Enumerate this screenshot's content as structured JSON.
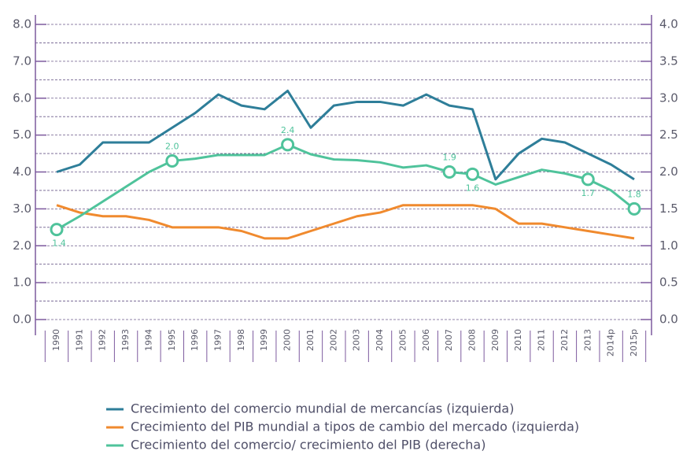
{
  "chart_data": {
    "type": "line",
    "categories": [
      "1990",
      "1991",
      "1992",
      "1993",
      "1994",
      "1995",
      "1996",
      "1997",
      "1998",
      "1999",
      "2000",
      "2001",
      "2002",
      "2003",
      "2004",
      "2005",
      "2006",
      "2007",
      "2008",
      "2009",
      "2010",
      "2011",
      "2012",
      "2013",
      "2014p",
      "2015p"
    ],
    "series": [
      {
        "name": "Crecimiento del comercio mundial de mercancías (izquierda)",
        "color": "#2e7e99",
        "axis": "y",
        "values": [
          4.0,
          4.2,
          4.8,
          4.8,
          4.8,
          5.2,
          5.6,
          6.1,
          5.8,
          5.7,
          6.2,
          5.2,
          5.8,
          5.9,
          5.9,
          5.8,
          6.1,
          5.8,
          5.7,
          3.8,
          4.5,
          4.9,
          4.8,
          4.5,
          4.2,
          3.8
        ]
      },
      {
        "name": "Crecimiento del PIB mundial a tipos de cambio del mercado (izquierda)",
        "color": "#f08a2e",
        "axis": "y",
        "values": [
          3.1,
          2.9,
          2.8,
          2.8,
          2.7,
          2.5,
          2.5,
          2.5,
          2.4,
          2.2,
          2.2,
          2.4,
          2.6,
          2.8,
          2.9,
          3.1,
          3.1,
          3.1,
          3.1,
          3.0,
          2.6,
          2.6,
          2.5,
          2.4,
          2.3,
          2.2
        ]
      },
      {
        "name": "Crecimiento del comercio/ crecimiento del PIB (derecha)",
        "color": "#4fc39b",
        "axis": "y2",
        "values": [
          1.22,
          1.4,
          1.6,
          1.8,
          2.0,
          2.15,
          2.18,
          2.23,
          2.23,
          2.23,
          2.37,
          2.24,
          2.17,
          2.16,
          2.13,
          2.06,
          2.09,
          2.0,
          1.97,
          1.83,
          1.93,
          2.03,
          1.98,
          1.9,
          1.75,
          1.5
        ]
      }
    ],
    "annotations": [
      {
        "x": "1990",
        "text": "1.4"
      },
      {
        "x": "1995",
        "text": "2.0"
      },
      {
        "x": "2000",
        "text": "2.4"
      },
      {
        "x": "2007",
        "text": "1.9"
      },
      {
        "x": "2008",
        "text": "1.6"
      },
      {
        "x": "2013",
        "text": "1.7"
      },
      {
        "x": "2015p",
        "text": "1.8"
      }
    ],
    "ylim": [
      0,
      8
    ],
    "yticks": [
      {
        "value": 0,
        "label": "0.0"
      },
      {
        "value": 1,
        "label": "1.0"
      },
      {
        "value": 2,
        "label": "2.0"
      },
      {
        "value": 3,
        "label": "3.0"
      },
      {
        "value": 4,
        "label": "4.0"
      },
      {
        "value": 5,
        "label": "5.0"
      },
      {
        "value": 6,
        "label": "6.0"
      },
      {
        "value": 7,
        "label": "7.0"
      },
      {
        "value": 8,
        "label": "8.0"
      }
    ],
    "minor_yticks": [
      0.5,
      1.5,
      2.5,
      3.5,
      4.5,
      5.5,
      6.5,
      7.5
    ],
    "y2lim": [
      0,
      4
    ],
    "y2ticks": [
      {
        "value": 0,
        "label": "0.0"
      },
      {
        "value": 0.5,
        "label": "0.5"
      },
      {
        "value": 1,
        "label": "1.0"
      },
      {
        "value": 1.5,
        "label": "1.5"
      },
      {
        "value": 2,
        "label": "2.0"
      },
      {
        "value": 2.5,
        "label": "2.5"
      },
      {
        "value": 3,
        "label": "3.0"
      },
      {
        "value": 3.5,
        "label": "3.5"
      },
      {
        "value": 4,
        "label": "4.0"
      }
    ],
    "grid": true
  }
}
